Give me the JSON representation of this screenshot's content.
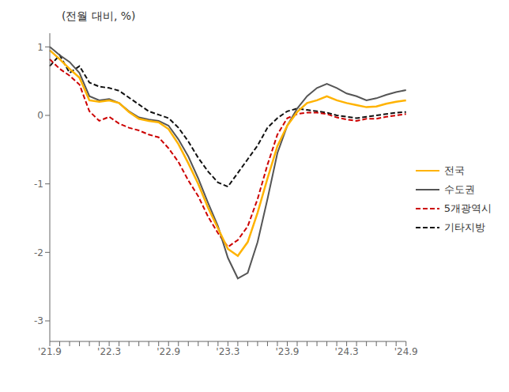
{
  "chart_data": {
    "type": "line",
    "annotation": "(전월 대비, %)",
    "categories": [
      "'21.9",
      null,
      null,
      null,
      null,
      null,
      "'22.3",
      null,
      null,
      null,
      null,
      null,
      "'22.9",
      null,
      null,
      null,
      null,
      null,
      "'23.3",
      null,
      null,
      null,
      null,
      null,
      "'23.9",
      null,
      null,
      null,
      null,
      null,
      "'24.3",
      null,
      null,
      null,
      null,
      null,
      "'24.9"
    ],
    "series": [
      {
        "name": "전국",
        "color": "#FFB300",
        "line_style": "solid",
        "values": [
          0.95,
          0.82,
          0.68,
          0.55,
          0.22,
          0.2,
          0.22,
          0.18,
          0.05,
          -0.05,
          -0.08,
          -0.1,
          -0.2,
          -0.42,
          -0.7,
          -1.0,
          -1.35,
          -1.65,
          -1.95,
          -2.05,
          -1.85,
          -1.42,
          -0.92,
          -0.45,
          -0.15,
          0.05,
          0.18,
          0.22,
          0.28,
          0.22,
          0.18,
          0.15,
          0.12,
          0.13,
          0.17,
          0.2,
          0.22
        ]
      },
      {
        "name": "수도권",
        "color": "#555555",
        "line_style": "solid",
        "values": [
          1.0,
          0.88,
          0.78,
          0.62,
          0.28,
          0.22,
          0.24,
          0.18,
          0.06,
          -0.03,
          -0.06,
          -0.08,
          -0.15,
          -0.35,
          -0.6,
          -0.92,
          -1.28,
          -1.62,
          -2.08,
          -2.38,
          -2.3,
          -1.85,
          -1.22,
          -0.55,
          -0.15,
          0.1,
          0.28,
          0.4,
          0.46,
          0.4,
          0.32,
          0.28,
          0.22,
          0.25,
          0.3,
          0.34,
          0.37
        ]
      },
      {
        "name": "5개광역시",
        "color": "#CC0000",
        "line_style": "dashed",
        "values": [
          0.82,
          0.68,
          0.58,
          0.45,
          0.06,
          -0.08,
          -0.02,
          -0.12,
          -0.18,
          -0.22,
          -0.28,
          -0.32,
          -0.48,
          -0.68,
          -0.95,
          -1.18,
          -1.48,
          -1.72,
          -1.92,
          -1.82,
          -1.62,
          -1.22,
          -0.72,
          -0.28,
          -0.04,
          0.02,
          0.04,
          0.04,
          0.02,
          -0.03,
          -0.06,
          -0.08,
          -0.05,
          -0.05,
          -0.02,
          0.0,
          0.02
        ]
      },
      {
        "name": "기타지방",
        "color": "#111111",
        "line_style": "dashed",
        "values": [
          0.72,
          0.88,
          0.62,
          0.72,
          0.48,
          0.42,
          0.4,
          0.36,
          0.26,
          0.16,
          0.06,
          0.01,
          -0.04,
          -0.18,
          -0.38,
          -0.62,
          -0.82,
          -0.98,
          -1.04,
          -0.84,
          -0.64,
          -0.44,
          -0.18,
          -0.04,
          0.06,
          0.1,
          0.08,
          0.06,
          0.04,
          0.0,
          -0.02,
          -0.04,
          -0.02,
          0.0,
          0.02,
          0.04,
          0.05
        ]
      }
    ],
    "ylim": [
      -3.3,
      1.2
    ],
    "yticks": [
      -3,
      -2,
      -1,
      0,
      1
    ],
    "grid": false,
    "legend": "right"
  }
}
